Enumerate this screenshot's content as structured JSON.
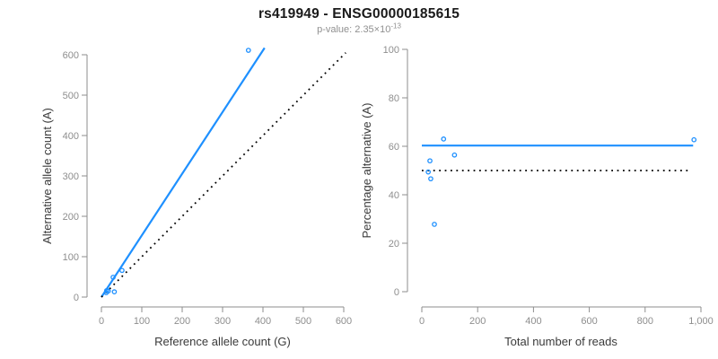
{
  "header": {
    "title": "rs419949 - ENSG00000185615",
    "pvalue_prefix": "p-value: 2.35×10",
    "pvalue_exponent": "-13"
  },
  "colors": {
    "accent_blue": "#1E90FF",
    "axis_gray": "#8E8E8E",
    "tick_label_gray": "#8E8E8E",
    "axis_title_color": "#3A3A3A",
    "title_color": "#1A1A1A",
    "subtitle_color": "#909090",
    "dotted_line_color": "#000000"
  },
  "chart_data": [
    {
      "type": "scatter",
      "name": "allele-counts-scatter",
      "title": "",
      "xlabel": "Reference allele count (G)",
      "ylabel": "Alternative allele count (A)",
      "xlim": [
        0,
        620
      ],
      "ylim": [
        0,
        620
      ],
      "grid": false,
      "legend": "none",
      "xticks": {
        "values": [
          0,
          100,
          200,
          300,
          400,
          500,
          600
        ],
        "labels": [
          "0",
          "100",
          "200",
          "300",
          "400",
          "500",
          "600"
        ]
      },
      "yticks": {
        "values": [
          0,
          100,
          200,
          300,
          400,
          500,
          600
        ],
        "labels": [
          "0",
          "100",
          "200",
          "300",
          "400",
          "500",
          "600"
        ]
      },
      "points": [
        [
          29,
          49
        ],
        [
          51,
          66
        ],
        [
          13,
          16
        ],
        [
          12,
          11
        ],
        [
          17,
          15
        ],
        [
          32,
          13
        ],
        [
          364,
          611
        ]
      ],
      "lines": [
        {
          "name": "fit-line",
          "style": "solid",
          "color_key": "accent_blue",
          "points": [
            [
              0,
              0
            ],
            [
              404,
              617
            ]
          ]
        },
        {
          "name": "identity-line",
          "style": "dotted",
          "color_key": "dotted_line_color",
          "points": [
            [
              0,
              0
            ],
            [
              605,
              605
            ]
          ]
        }
      ]
    },
    {
      "type": "scatter",
      "name": "percentage-vs-coverage-scatter",
      "title": "",
      "xlabel": "Total number of reads",
      "ylabel": "Percentage alternative (A)",
      "xlim": [
        0,
        1040
      ],
      "ylim": [
        0,
        100
      ],
      "grid": false,
      "legend": "none",
      "xticks": {
        "values": [
          0,
          200,
          400,
          600,
          800,
          1000
        ],
        "labels": [
          "0",
          "200",
          "400",
          "600",
          "800",
          "1,000"
        ]
      },
      "yticks": {
        "values": [
          0,
          20,
          40,
          60,
          80,
          100
        ],
        "labels": [
          "0",
          "20",
          "40",
          "60",
          "80",
          "100"
        ]
      },
      "points": [
        [
          78,
          63
        ],
        [
          117,
          56.4
        ],
        [
          29,
          54
        ],
        [
          23,
          49.4
        ],
        [
          32,
          46.6
        ],
        [
          45,
          27.8
        ],
        [
          975,
          62.7
        ]
      ],
      "lines": [
        {
          "name": "fit-line",
          "style": "solid",
          "color_key": "accent_blue",
          "points": [
            [
              0,
              60.3
            ],
            [
              972,
              60.3
            ]
          ]
        },
        {
          "name": "null-line",
          "style": "dotted",
          "color_key": "dotted_line_color",
          "points": [
            [
              0,
              50
            ],
            [
              958,
              50
            ]
          ]
        }
      ]
    }
  ]
}
